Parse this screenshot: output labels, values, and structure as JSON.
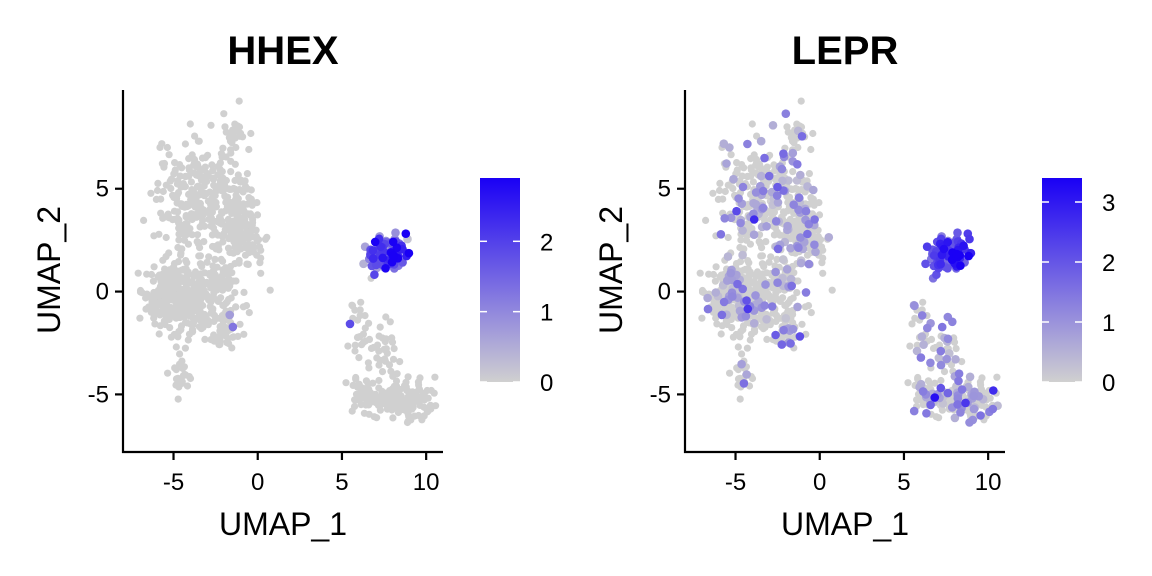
{
  "chart_data": [
    {
      "type": "scatter",
      "title": "HHEX",
      "xlabel": "UMAP_1",
      "ylabel": "UMAP_2",
      "xlim": [
        -8,
        11
      ],
      "ylim": [
        -7.8,
        9.8
      ],
      "xticks": [
        -5,
        0,
        5,
        10
      ],
      "yticks": [
        -5,
        0,
        5
      ],
      "legend": {
        "position": "right",
        "min": 0,
        "max": 2.9,
        "ticks": [
          0,
          1,
          2
        ],
        "low_color": "#d0d0d0",
        "high_color": "#1a00f5"
      },
      "points_note": "Cells colored by expression; high values concentrated in cluster near UMAP_1≈8, UMAP_2≈2",
      "clusters": [
        {
          "cx": -4.3,
          "cy": 4.6,
          "sx": 0.9,
          "sy": 1.3,
          "n": 170,
          "expr": 0.0
        },
        {
          "cx": -1.9,
          "cy": 3.6,
          "sx": 0.9,
          "sy": 1.7,
          "n": 210,
          "expr": 0.0
        },
        {
          "cx": -0.8,
          "cy": 2.7,
          "sx": 0.6,
          "sy": 0.6,
          "n": 70,
          "expr": 0.0
        },
        {
          "cx": -1.2,
          "cy": 7.8,
          "sx": 0.25,
          "sy": 0.5,
          "n": 12,
          "expr": 0.0
        },
        {
          "cx": -5.2,
          "cy": -0.2,
          "sx": 0.8,
          "sy": 0.9,
          "n": 220,
          "expr": 0.0
        },
        {
          "cx": -3.6,
          "cy": -0.6,
          "sx": 0.7,
          "sy": 0.8,
          "n": 110,
          "expr": 0.0
        },
        {
          "cx": -2.0,
          "cy": -1.6,
          "sx": 0.5,
          "sy": 0.7,
          "n": 70,
          "expr": 0.02
        },
        {
          "cx": -2.3,
          "cy": 0.6,
          "sx": 0.5,
          "sy": 0.4,
          "n": 40,
          "expr": 0.0
        },
        {
          "cx": -4.6,
          "cy": -3.9,
          "sx": 0.3,
          "sy": 0.9,
          "n": 25,
          "expr": 0.0
        },
        {
          "cx": 7.6,
          "cy": 1.7,
          "sx": 0.55,
          "sy": 0.45,
          "n": 80,
          "expr": 1.5
        },
        {
          "cx": 8.2,
          "cy": 1.9,
          "sx": 0.3,
          "sy": 0.3,
          "n": 25,
          "expr": 2.6
        },
        {
          "cx": 6.0,
          "cy": -1.6,
          "sx": 0.4,
          "sy": 0.8,
          "n": 25,
          "expr": 0.05
        },
        {
          "cx": 7.6,
          "cy": -2.9,
          "sx": 0.4,
          "sy": 0.9,
          "n": 30,
          "expr": 0.02
        },
        {
          "cx": 8.5,
          "cy": -5.3,
          "sx": 1.1,
          "sy": 0.5,
          "n": 140,
          "expr": 0.0
        },
        {
          "cx": 6.3,
          "cy": -5.0,
          "sx": 0.5,
          "sy": 0.4,
          "n": 40,
          "expr": 0.0
        }
      ]
    },
    {
      "type": "scatter",
      "title": "LEPR",
      "xlabel": "UMAP_1",
      "ylabel": "UMAP_2",
      "xlim": [
        -8,
        11
      ],
      "ylim": [
        -7.8,
        9.8
      ],
      "xticks": [
        -5,
        0,
        5,
        10
      ],
      "yticks": [
        -5,
        0,
        5
      ],
      "legend": {
        "position": "right",
        "min": 0,
        "max": 3.4,
        "ticks": [
          0,
          1,
          2,
          3
        ],
        "low_color": "#d0d0d0",
        "high_color": "#1a00f5"
      },
      "points_note": "Cells colored by expression; high values concentrated in cluster near UMAP_1≈8, UMAP_2≈2 with scattered low expression elsewhere",
      "clusters": [
        {
          "cx": -4.3,
          "cy": 4.6,
          "sx": 0.9,
          "sy": 1.3,
          "n": 170,
          "expr": 0.25
        },
        {
          "cx": -1.9,
          "cy": 3.6,
          "sx": 0.9,
          "sy": 1.7,
          "n": 210,
          "expr": 0.25
        },
        {
          "cx": -0.8,
          "cy": 2.7,
          "sx": 0.6,
          "sy": 0.6,
          "n": 70,
          "expr": 0.3
        },
        {
          "cx": -1.2,
          "cy": 7.8,
          "sx": 0.25,
          "sy": 0.5,
          "n": 12,
          "expr": 0.3
        },
        {
          "cx": -5.2,
          "cy": -0.2,
          "sx": 0.8,
          "sy": 0.9,
          "n": 220,
          "expr": 0.25
        },
        {
          "cx": -3.6,
          "cy": -0.6,
          "sx": 0.7,
          "sy": 0.8,
          "n": 110,
          "expr": 0.25
        },
        {
          "cx": -2.0,
          "cy": -1.6,
          "sx": 0.5,
          "sy": 0.7,
          "n": 70,
          "expr": 0.2
        },
        {
          "cx": -2.3,
          "cy": 0.6,
          "sx": 0.5,
          "sy": 0.4,
          "n": 40,
          "expr": 0.2
        },
        {
          "cx": -4.6,
          "cy": -3.9,
          "sx": 0.3,
          "sy": 0.9,
          "n": 25,
          "expr": 0.1
        },
        {
          "cx": 7.6,
          "cy": 1.7,
          "sx": 0.55,
          "sy": 0.45,
          "n": 80,
          "expr": 1.8
        },
        {
          "cx": 8.2,
          "cy": 1.9,
          "sx": 0.3,
          "sy": 0.3,
          "n": 25,
          "expr": 2.9
        },
        {
          "cx": 6.0,
          "cy": -1.6,
          "sx": 0.4,
          "sy": 0.8,
          "n": 25,
          "expr": 0.3
        },
        {
          "cx": 7.6,
          "cy": -2.9,
          "sx": 0.4,
          "sy": 0.9,
          "n": 30,
          "expr": 0.5
        },
        {
          "cx": 8.5,
          "cy": -5.3,
          "sx": 1.1,
          "sy": 0.5,
          "n": 140,
          "expr": 0.35
        },
        {
          "cx": 6.3,
          "cy": -5.0,
          "sx": 0.5,
          "sy": 0.4,
          "n": 40,
          "expr": 0.2
        }
      ]
    }
  ]
}
